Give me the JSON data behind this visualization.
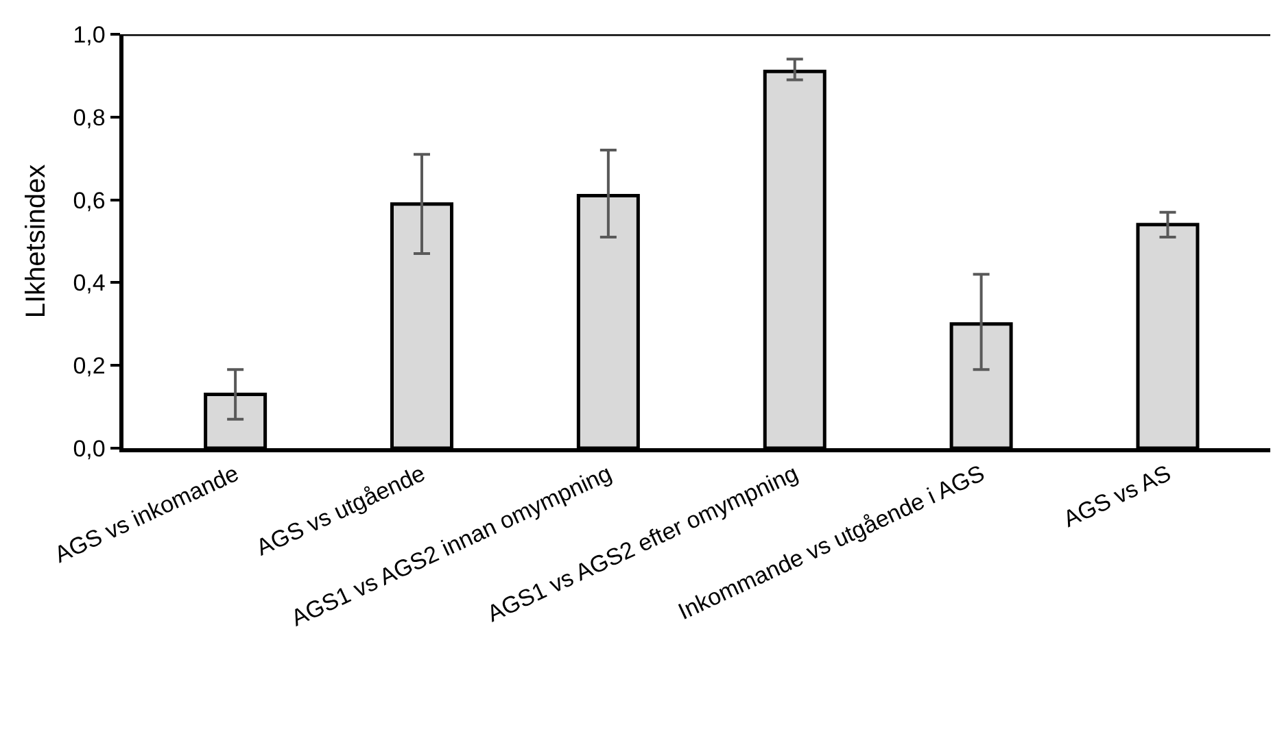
{
  "chart_data": {
    "type": "bar",
    "ylabel": "LIkhetsindex",
    "categories": [
      "AGS vs inkomande",
      "AGS vs utgående",
      "AGS1 vs AGS2 innan omympning",
      "AGS1 vs AGS2 efter omympning",
      "Inkommande vs utgående i AGS",
      "AGS vs AS"
    ],
    "values": [
      0.13,
      0.59,
      0.61,
      0.91,
      0.3,
      0.54
    ],
    "errors": [
      [
        0.07,
        0.19
      ],
      [
        0.47,
        0.71
      ],
      [
        0.51,
        0.72
      ],
      [
        0.89,
        0.94
      ],
      [
        0.19,
        0.42
      ],
      [
        0.51,
        0.57
      ]
    ],
    "color": "#d9d9d9",
    "ylim": [
      0,
      1.0
    ],
    "yticks": [
      {
        "value": 0,
        "label": "0,0"
      },
      {
        "value": 0.2,
        "label": "0,2"
      },
      {
        "value": 0.4,
        "label": "0,4"
      },
      {
        "value": 0.6,
        "label": "0,6"
      },
      {
        "value": 0.8,
        "label": "0,8"
      },
      {
        "value": 1.0,
        "label": "1,0"
      }
    ],
    "legend": false
  }
}
